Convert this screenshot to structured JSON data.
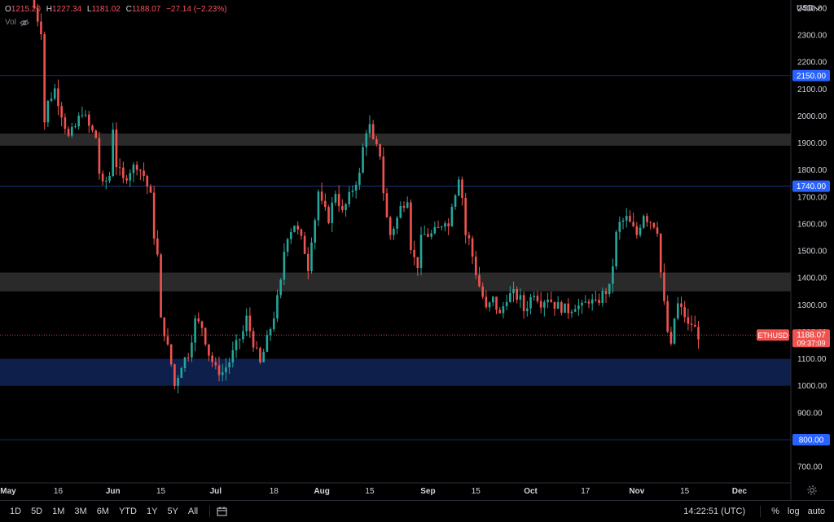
{
  "ohlc": {
    "o_label": "O",
    "o": "1215.20",
    "h_label": "H",
    "h": "1227.34",
    "l_label": "L",
    "l": "1181.02",
    "c_label": "C",
    "c": "1188.07",
    "change": "−27.14 (−2.23%)"
  },
  "vol_label": "Vol",
  "bottom_bar": {
    "timeframes": [
      "1D",
      "5D",
      "1M",
      "3M",
      "6M",
      "YTD",
      "1Y",
      "5Y",
      "All"
    ],
    "clock": "14:22:51 (UTC)",
    "percent": "%",
    "log": "log",
    "auto": "auto"
  },
  "colors": {
    "up": "#26a69a",
    "down": "#ef5350",
    "zone_gray": "#2a2a2a",
    "zone_blue": "#0d1f4a",
    "level_line": "#2962ff",
    "level_badge": "#2962ff",
    "price_badge": "#ef5350"
  },
  "chart_data": {
    "type": "candlestick",
    "symbol": "ETHUSD",
    "currency": "USD",
    "last_price": "1188.07",
    "countdown": "09:37:09",
    "y_ticks": [
      "700.00",
      "900.00",
      "1000.00",
      "1100.00",
      "1200.00",
      "1300.00",
      "1400.00",
      "1500.00",
      "1600.00",
      "1700.00",
      "1800.00",
      "1900.00",
      "2000.00",
      "2100.00",
      "2200.00",
      "2300.00",
      "2400.00"
    ],
    "ylim": [
      640,
      2430
    ],
    "x_ticks": [
      {
        "label": "May",
        "day": 0
      },
      {
        "label": "16",
        "day": 15
      },
      {
        "label": "Jun",
        "day": 31
      },
      {
        "label": "15",
        "day": 45
      },
      {
        "label": "Jul",
        "day": 61
      },
      {
        "label": "18",
        "day": 78
      },
      {
        "label": "Aug",
        "day": 92
      },
      {
        "label": "15",
        "day": 106
      },
      {
        "label": "Sep",
        "day": 123
      },
      {
        "label": "15",
        "day": 137
      },
      {
        "label": "Oct",
        "day": 153
      },
      {
        "label": "17",
        "day": 169
      },
      {
        "label": "Nov",
        "day": 184
      },
      {
        "label": "15",
        "day": 198
      },
      {
        "label": "Dec",
        "day": 214
      }
    ],
    "xlim_days": [
      -2,
      229
    ],
    "horizontal_levels": [
      {
        "label": "2150.00",
        "value": 2150
      },
      {
        "label": "1740.00",
        "value": 1740
      },
      {
        "label": "800.00",
        "value": 800
      }
    ],
    "zones": [
      {
        "from": 1890,
        "to": 1935,
        "kind": "gray"
      },
      {
        "from": 1350,
        "to": 1420,
        "kind": "gray"
      },
      {
        "from": 1000,
        "to": 1100,
        "kind": "blue"
      }
    ],
    "close_anchors": [
      [
        8,
        2400
      ],
      [
        10,
        2320
      ],
      [
        11,
        1980
      ],
      [
        12,
        2050
      ],
      [
        14,
        2100
      ],
      [
        16,
        2010
      ],
      [
        18,
        1920
      ],
      [
        20,
        1960
      ],
      [
        22,
        2020
      ],
      [
        24,
        1960
      ],
      [
        26,
        1920
      ],
      [
        27,
        1790
      ],
      [
        28,
        1740
      ],
      [
        30,
        1780
      ],
      [
        31,
        1960
      ],
      [
        32,
        1820
      ],
      [
        34,
        1760
      ],
      [
        36,
        1800
      ],
      [
        38,
        1820
      ],
      [
        40,
        1780
      ],
      [
        42,
        1700
      ],
      [
        43,
        1560
      ],
      [
        44,
        1480
      ],
      [
        45,
        1240
      ],
      [
        46,
        1200
      ],
      [
        47,
        1140
      ],
      [
        48,
        1080
      ],
      [
        49,
        1000
      ],
      [
        51,
        1080
      ],
      [
        53,
        1120
      ],
      [
        55,
        1240
      ],
      [
        57,
        1220
      ],
      [
        59,
        1120
      ],
      [
        61,
        1060
      ],
      [
        63,
        1050
      ],
      [
        65,
        1090
      ],
      [
        67,
        1150
      ],
      [
        69,
        1200
      ],
      [
        70,
        1250
      ],
      [
        72,
        1160
      ],
      [
        74,
        1080
      ],
      [
        76,
        1170
      ],
      [
        78,
        1260
      ],
      [
        80,
        1380
      ],
      [
        81,
        1500
      ],
      [
        82,
        1560
      ],
      [
        84,
        1600
      ],
      [
        86,
        1540
      ],
      [
        87,
        1500
      ],
      [
        88,
        1440
      ],
      [
        89,
        1550
      ],
      [
        90,
        1620
      ],
      [
        91,
        1720
      ],
      [
        92,
        1670
      ],
      [
        94,
        1620
      ],
      [
        96,
        1720
      ],
      [
        98,
        1640
      ],
      [
        100,
        1700
      ],
      [
        102,
        1760
      ],
      [
        103,
        1780
      ],
      [
        104,
        1880
      ],
      [
        105,
        1950
      ],
      [
        106,
        1960
      ],
      [
        107,
        1900
      ],
      [
        109,
        1860
      ],
      [
        110,
        1720
      ],
      [
        111,
        1620
      ],
      [
        112,
        1560
      ],
      [
        114,
        1620
      ],
      [
        115,
        1660
      ],
      [
        117,
        1700
      ],
      [
        118,
        1520
      ],
      [
        119,
        1470
      ],
      [
        120,
        1450
      ],
      [
        121,
        1540
      ],
      [
        122,
        1560
      ],
      [
        124,
        1560
      ],
      [
        126,
        1580
      ],
      [
        128,
        1620
      ],
      [
        129,
        1590
      ],
      [
        130,
        1680
      ],
      [
        131,
        1720
      ],
      [
        132,
        1780
      ],
      [
        133,
        1700
      ],
      [
        134,
        1560
      ],
      [
        135,
        1540
      ],
      [
        136,
        1480
      ],
      [
        137,
        1420
      ],
      [
        138,
        1370
      ],
      [
        139,
        1330
      ],
      [
        140,
        1280
      ],
      [
        142,
        1320
      ],
      [
        144,
        1260
      ],
      [
        146,
        1330
      ],
      [
        148,
        1340
      ],
      [
        150,
        1320
      ],
      [
        151,
        1280
      ],
      [
        152,
        1300
      ],
      [
        154,
        1350
      ],
      [
        156,
        1310
      ],
      [
        158,
        1330
      ],
      [
        160,
        1300
      ],
      [
        162,
        1290
      ],
      [
        164,
        1280
      ],
      [
        166,
        1300
      ],
      [
        168,
        1290
      ],
      [
        170,
        1320
      ],
      [
        172,
        1300
      ],
      [
        174,
        1340
      ],
      [
        176,
        1360
      ],
      [
        177,
        1450
      ],
      [
        178,
        1560
      ],
      [
        179,
        1600
      ],
      [
        181,
        1620
      ],
      [
        182,
        1600
      ],
      [
        184,
        1560
      ],
      [
        186,
        1640
      ],
      [
        187,
        1620
      ],
      [
        189,
        1600
      ],
      [
        190,
        1580
      ],
      [
        191,
        1420
      ],
      [
        192,
        1300
      ],
      [
        193,
        1200
      ],
      [
        194,
        1140
      ],
      [
        195,
        1250
      ],
      [
        196,
        1300
      ],
      [
        198,
        1260
      ],
      [
        199,
        1220
      ],
      [
        200,
        1230
      ],
      [
        201,
        1210
      ],
      [
        202,
        1188
      ]
    ]
  }
}
